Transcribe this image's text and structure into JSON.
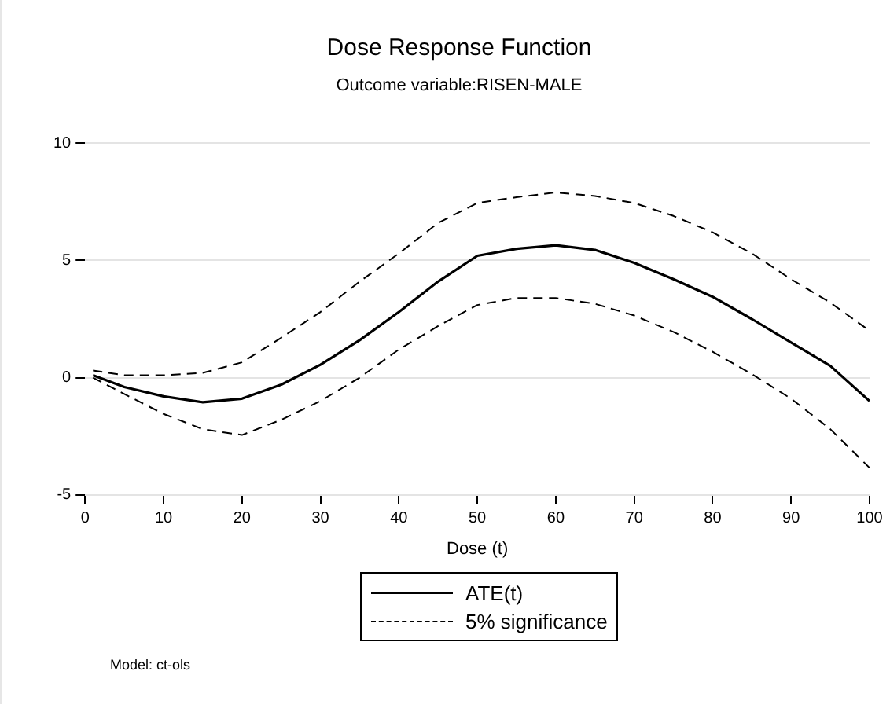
{
  "chart_data": {
    "type": "line",
    "title": "Dose Response Function",
    "subtitle": "Outcome variable:RISEN-MALE",
    "xlabel": "Dose (t)",
    "x": [
      1,
      5,
      10,
      15,
      20,
      25,
      30,
      35,
      40,
      45,
      50,
      55,
      60,
      65,
      70,
      75,
      80,
      85,
      90,
      95,
      100
    ],
    "series": [
      {
        "name": "ATE(t)",
        "color": "#000000",
        "line_style": "solid",
        "values": [
          0.1,
          -0.4,
          -0.8,
          -1.05,
          -0.9,
          -0.3,
          0.55,
          1.6,
          2.8,
          4.1,
          5.2,
          5.5,
          5.65,
          5.45,
          4.9,
          4.2,
          3.45,
          2.5,
          1.5,
          0.5,
          -1.0
        ]
      },
      {
        "name": "5% significance",
        "color": "#000000",
        "line_style": "dashed",
        "values": [
          0.3,
          0.1,
          0.1,
          0.2,
          0.65,
          1.7,
          2.8,
          4.1,
          5.3,
          6.6,
          7.45,
          7.7,
          7.9,
          7.75,
          7.45,
          6.9,
          6.2,
          5.3,
          4.2,
          3.2,
          2.0
        ]
      },
      {
        "color": "#000000",
        "line_style": "dashed",
        "values": [
          0.0,
          -0.7,
          -1.55,
          -2.2,
          -2.45,
          -1.8,
          -1.0,
          0.0,
          1.2,
          2.2,
          3.1,
          3.4,
          3.4,
          3.15,
          2.65,
          1.95,
          1.1,
          0.15,
          -0.9,
          -2.2,
          -3.85
        ]
      }
    ],
    "xlim": [
      0,
      100
    ],
    "xticks": [
      0,
      10,
      20,
      30,
      40,
      50,
      60,
      70,
      80,
      90,
      100
    ],
    "ylim": [
      -5,
      10
    ],
    "yticks": [
      -5,
      0,
      5,
      10
    ],
    "grid": "y",
    "legend": "bottom",
    "marker": "none",
    "annotations": [
      "Model: ct-ols"
    ]
  }
}
